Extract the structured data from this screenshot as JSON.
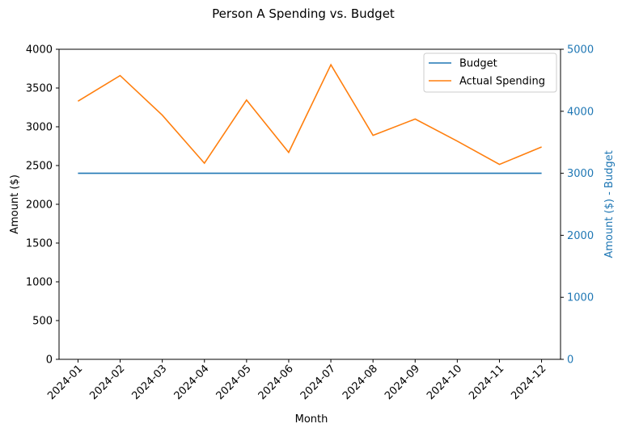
{
  "chart_data": {
    "type": "line",
    "title": "Person A Spending vs. Budget",
    "xlabel": "Month",
    "ylabel": "Amount ($)",
    "ylabel_right": "Amount ($) - Budget",
    "categories": [
      "2024-01",
      "2024-02",
      "2024-03",
      "2024-04",
      "2024-05",
      "2024-06",
      "2024-07",
      "2024-08",
      "2024-09",
      "2024-10",
      "2024-11",
      "2024-12"
    ],
    "ylim": [
      0,
      4000
    ],
    "yticks": [
      0,
      500,
      1000,
      1500,
      2000,
      2500,
      3000,
      3500,
      4000
    ],
    "ylim_right": [
      0,
      5000
    ],
    "yticks_right": [
      0,
      1000,
      2000,
      3000,
      4000,
      5000
    ],
    "grid": false,
    "legend_position": "top-right",
    "series": [
      {
        "name": "Budget",
        "color": "#1f77b4",
        "values": [
          2400,
          2400,
          2400,
          2400,
          2400,
          2400,
          2400,
          2400,
          2400,
          2400,
          2400,
          2400
        ]
      },
      {
        "name": "Actual Spending",
        "color": "#ff7f0e",
        "values": [
          3330,
          3660,
          3150,
          2530,
          3345,
          2670,
          3800,
          2890,
          3100,
          2815,
          2515,
          2740
        ]
      }
    ],
    "right_axis_color": "#1f77b4"
  }
}
